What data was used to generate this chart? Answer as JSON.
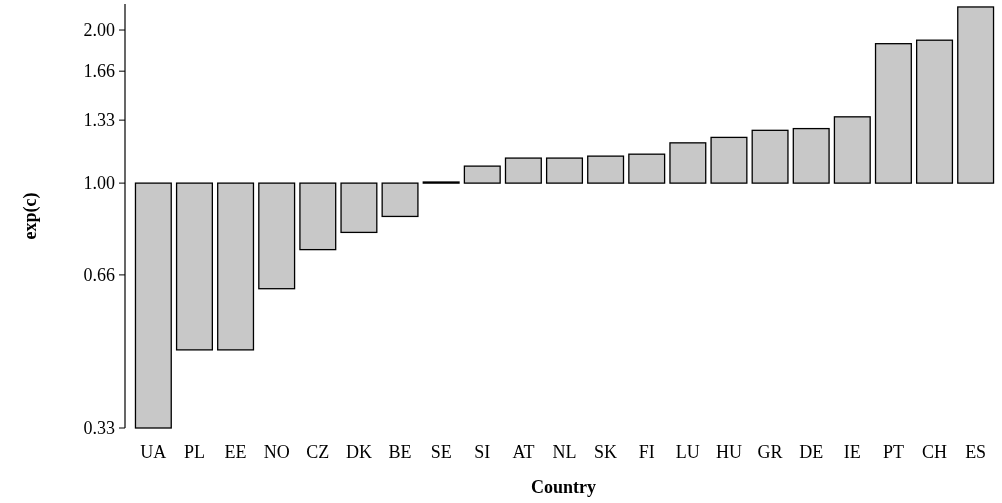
{
  "chart_data": {
    "type": "bar",
    "xlabel": "Country",
    "ylabel": "exp(c)",
    "log": true,
    "categories": [
      "UA",
      "PL",
      "EE",
      "NO",
      "CZ",
      "DK",
      "BE",
      "SE",
      "SI",
      "AT",
      "NL",
      "SK",
      "FI",
      "LU",
      "HU",
      "GR",
      "DE",
      "IE",
      "PT",
      "CH",
      "ES"
    ],
    "values": [
      -0.67,
      -0.53,
      -0.53,
      -0.38,
      -0.26,
      -0.2,
      -0.14,
      0.005,
      0.08,
      0.12,
      0.12,
      0.13,
      0.14,
      0.2,
      0.23,
      0.27,
      0.28,
      0.35,
      0.88,
      0.91,
      1.22
    ],
    "base": [
      1,
      1,
      1,
      1,
      1,
      1,
      1,
      1,
      1,
      1,
      1,
      1,
      1,
      1,
      1,
      1,
      1,
      1,
      1,
      1,
      1
    ],
    "color": "#c8c8c8",
    "ylim": [
      0.33,
      2.25
    ],
    "yticks": [
      {
        "value": 0.33,
        "label": "0.33"
      },
      {
        "value": 0.66,
        "label": "0.66"
      },
      {
        "value": 1,
        "label": "1.00"
      },
      {
        "value": 1.33,
        "label": "1.33"
      },
      {
        "value": 1.66,
        "label": "1.66"
      },
      {
        "value": 2,
        "label": "2.00"
      }
    ],
    "grid": false
  }
}
